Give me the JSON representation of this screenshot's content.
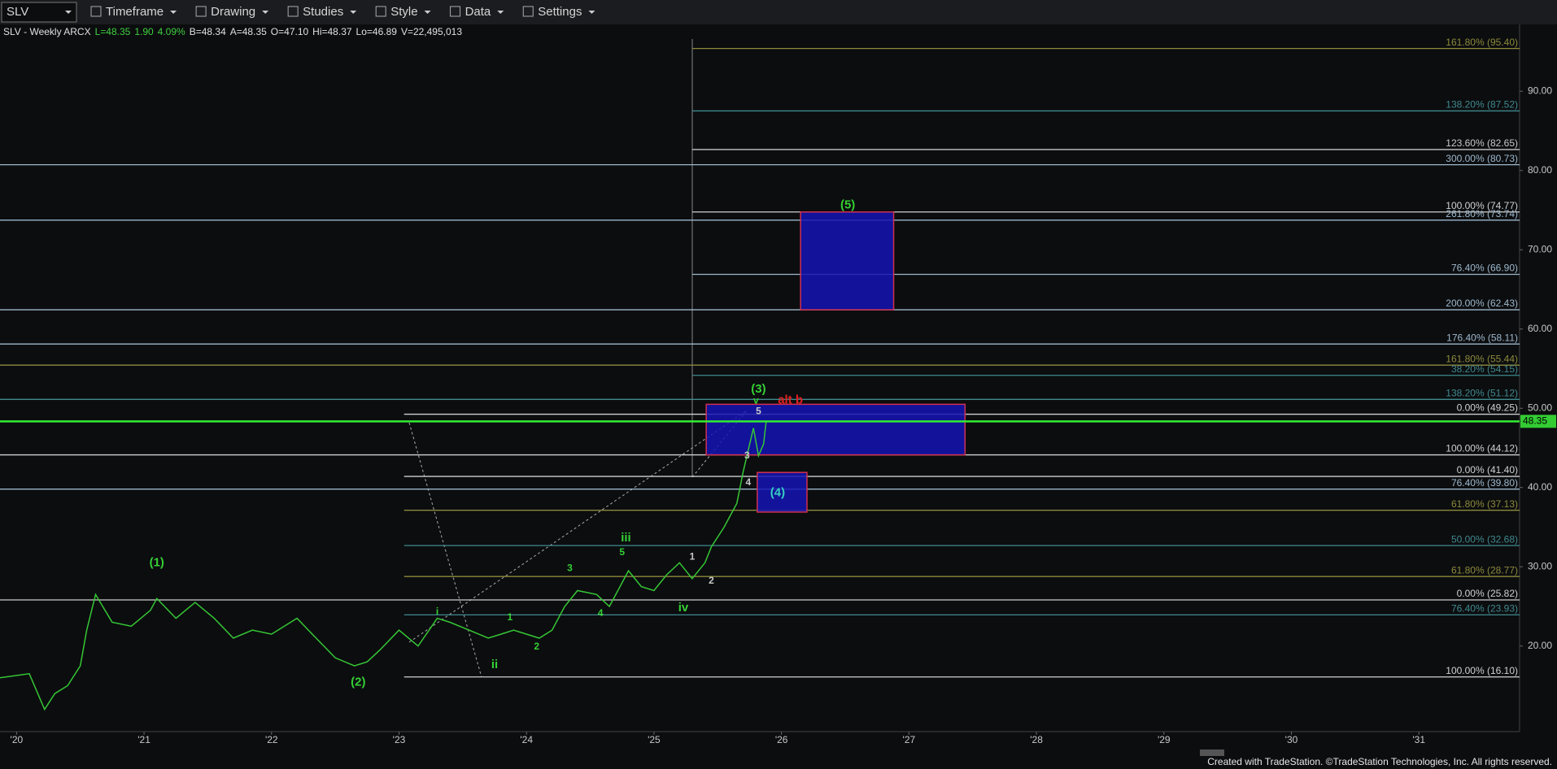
{
  "toolbar": {
    "symbol": "SLV",
    "items": [
      "Timeframe",
      "Drawing",
      "Studies",
      "Style",
      "Data",
      "Settings"
    ]
  },
  "info": [
    {
      "text": "SLV - Weekly ARCX",
      "color": "#e0e0e0"
    },
    {
      "text": "L=48.35",
      "color": "#3fd13f"
    },
    {
      "text": "1.90",
      "color": "#3fd13f"
    },
    {
      "text": "4.09%",
      "color": "#3fd13f"
    },
    {
      "text": "B=48.34",
      "color": "#e0e0e0"
    },
    {
      "text": "A=48.35",
      "color": "#e0e0e0"
    },
    {
      "text": "O=47.10",
      "color": "#e0e0e0"
    },
    {
      "text": "Hi=48.37",
      "color": "#e0e0e0"
    },
    {
      "text": "Lo=46.89",
      "color": "#e0e0e0"
    },
    {
      "text": "V=22,495,013",
      "color": "#e0e0e0"
    }
  ],
  "chart_data": {
    "type": "line",
    "color": "#35c735",
    "x": [
      2019.87,
      2020.1,
      2020.22,
      2020.3,
      2020.4,
      2020.5,
      2020.55,
      2020.62,
      2020.75,
      2020.9,
      2021.05,
      2021.1,
      2021.25,
      2021.4,
      2021.55,
      2021.7,
      2021.85,
      2022.0,
      2022.2,
      2022.35,
      2022.5,
      2022.65,
      2022.75,
      2022.85,
      2023.0,
      2023.15,
      2023.3,
      2023.4,
      2023.55,
      2023.7,
      2023.8,
      2023.9,
      2024.1,
      2024.2,
      2024.3,
      2024.4,
      2024.55,
      2024.65,
      2024.8,
      2024.9,
      2025.0,
      2025.1,
      2025.2,
      2025.3,
      2025.4,
      2025.45,
      2025.55,
      2025.65,
      2025.7,
      2025.78,
      2025.82,
      2025.86,
      2025.88
    ],
    "values": [
      16,
      16.5,
      12,
      14,
      15,
      17.5,
      22,
      26.5,
      23,
      22.5,
      24.5,
      26,
      23.5,
      25.5,
      23.5,
      21,
      22,
      21.5,
      23.5,
      21,
      18.5,
      17.5,
      18,
      19.5,
      22,
      20,
      23.5,
      23,
      22,
      21,
      21.5,
      22,
      21,
      22,
      25,
      27,
      26.5,
      25,
      29.5,
      27.5,
      27,
      29,
      30.5,
      28.5,
      30.5,
      32.5,
      35,
      38,
      42,
      47.5,
      44,
      45.5,
      48.35
    ],
    "last": 48.35,
    "xlim": [
      2019.87,
      2031.79
    ],
    "ylim": [
      9.2,
      96.9
    ],
    "xticks": [
      {
        "value": 2020,
        "label": "'20"
      },
      {
        "value": 2021,
        "label": "'21"
      },
      {
        "value": 2022,
        "label": "'22"
      },
      {
        "value": 2023,
        "label": "'23"
      },
      {
        "value": 2024,
        "label": "'24"
      },
      {
        "value": 2025,
        "label": "'25"
      },
      {
        "value": 2026,
        "label": "'26"
      },
      {
        "value": 2027,
        "label": "'27"
      },
      {
        "value": 2028,
        "label": "'28"
      },
      {
        "value": 2029,
        "label": "'29"
      },
      {
        "value": 2030,
        "label": "'30"
      },
      {
        "value": 2031,
        "label": "'31"
      }
    ],
    "yticks": [
      {
        "value": 20,
        "label": "20.00"
      },
      {
        "value": 30,
        "label": "30.00"
      },
      {
        "value": 40,
        "label": "40.00"
      },
      {
        "value": 50,
        "label": "50.00"
      },
      {
        "value": 60,
        "label": "60.00"
      },
      {
        "value": 70,
        "label": "70.00"
      },
      {
        "value": 80,
        "label": "80.00"
      },
      {
        "value": 90,
        "label": "90.00"
      }
    ],
    "levels": [
      {
        "label": "161.80% (95.40)",
        "value": 95.4,
        "from": 2025.3,
        "color": "#8c8a3c"
      },
      {
        "label": "138.20% (87.52)",
        "value": 87.52,
        "from": 2025.3,
        "color": "#3f8a8f"
      },
      {
        "label": "123.60% (82.65)",
        "value": 82.65,
        "from": 2025.3,
        "color": "#c8c8c8"
      },
      {
        "label": "300.00% (80.73)",
        "value": 80.73,
        "from": 2019.87,
        "color": "#9db8cc"
      },
      {
        "label": "100.00% (74.77)",
        "value": 74.77,
        "from": 2025.3,
        "color": "#d0d0d0"
      },
      {
        "label": "261.80% (73.74)",
        "value": 73.74,
        "from": 2019.87,
        "color": "#9db8cc"
      },
      {
        "label": "76.40% (66.90)",
        "value": 66.9,
        "from": 2025.3,
        "color": "#9db8cc"
      },
      {
        "label": "200.00% (62.43)",
        "value": 62.43,
        "from": 2019.87,
        "color": "#9db8cc"
      },
      {
        "label": "176.40% (58.11)",
        "value": 58.11,
        "from": 2019.87,
        "color": "#9db8cc"
      },
      {
        "label": "161.80% (55.44)",
        "value": 55.44,
        "from": 2019.87,
        "color": "#8c8a3c"
      },
      {
        "label": "38.20% (54.15)",
        "value": 54.15,
        "from": 2025.3,
        "color": "#3f8a8f"
      },
      {
        "label": "138.20% (51.12)",
        "value": 51.12,
        "from": 2019.87,
        "color": "#3f8a8f"
      },
      {
        "label": "0.00% (49.25)",
        "value": 49.25,
        "from": 2023.04,
        "color": "#d0d0d0"
      },
      {
        "label": "100.00% (44.12)",
        "value": 44.12,
        "from": 2019.87,
        "color": "#d0d0d0"
      },
      {
        "label": "0.00% (41.40)",
        "value": 41.4,
        "from": 2023.04,
        "color": "#d0d0d0"
      },
      {
        "label": "76.40% (39.80)",
        "value": 39.8,
        "from": 2019.87,
        "color": "#9db8cc"
      },
      {
        "label": "61.80% (37.13)",
        "value": 37.13,
        "from": 2023.04,
        "color": "#8c8a3c"
      },
      {
        "label": "50.00% (32.68)",
        "value": 32.68,
        "from": 2023.04,
        "color": "#3f8a8f"
      },
      {
        "label": "61.80% (28.77)",
        "value": 28.77,
        "from": 2023.04,
        "color": "#8c8a3c"
      },
      {
        "label": "0.00% (25.82)",
        "value": 25.82,
        "from": 2019.87,
        "color": "#d0d0d0"
      },
      {
        "label": "76.40% (23.93)",
        "value": 23.93,
        "from": 2023.04,
        "color": "#3f8a8f"
      },
      {
        "label": "100.00% (16.10)",
        "value": 16.1,
        "from": 2023.04,
        "color": "#d0d0d0"
      }
    ],
    "zones": [
      {
        "x0": 2026.15,
        "x1": 2026.88,
        "y0": 62.43,
        "y1": 74.77
      },
      {
        "x0": 2025.41,
        "x1": 2027.44,
        "y0": 44.12,
        "y1": 50.5
      },
      {
        "x0": 2025.81,
        "x1": 2026.2,
        "y0": 36.9,
        "y1": 41.9
      }
    ],
    "annotations": [
      {
        "text": "(1)",
        "x": 2021.1,
        "y": 30.5,
        "color": "#35d035"
      },
      {
        "text": "(2)",
        "x": 2022.68,
        "y": 15.4,
        "color": "#35d035"
      },
      {
        "text": "(3)",
        "x": 2025.82,
        "y": 52.4,
        "color": "#35d035"
      },
      {
        "text": "(4)",
        "x": 2025.97,
        "y": 39.3,
        "color": "#35d0c0"
      },
      {
        "text": "(5)",
        "x": 2026.52,
        "y": 75.6,
        "color": "#35d035"
      },
      {
        "text": "alt b",
        "x": 2026.07,
        "y": 51.0,
        "color": "#e02020"
      },
      {
        "text": "i",
        "x": 2023.3,
        "y": 24.3,
        "color": "#35d035"
      },
      {
        "text": "ii",
        "x": 2023.75,
        "y": 17.6,
        "color": "#35d035"
      },
      {
        "text": "iii",
        "x": 2024.78,
        "y": 33.6,
        "color": "#35d035"
      },
      {
        "text": "iv",
        "x": 2025.23,
        "y": 24.8,
        "color": "#35d035"
      },
      {
        "text": "v",
        "x": 2025.8,
        "y": 50.9,
        "color": "#35d035"
      },
      {
        "text": "1",
        "x": 2023.87,
        "y": 23.6,
        "color": "#35d035"
      },
      {
        "text": "2",
        "x": 2024.08,
        "y": 19.9,
        "color": "#35d035"
      },
      {
        "text": "3",
        "x": 2024.34,
        "y": 29.8,
        "color": "#35d035"
      },
      {
        "text": "4",
        "x": 2024.58,
        "y": 24.1,
        "color": "#35d035"
      },
      {
        "text": "5",
        "x": 2024.75,
        "y": 31.8,
        "color": "#35d035"
      },
      {
        "text": "1",
        "x": 2025.3,
        "y": 31.2,
        "color": "#c8c8c8"
      },
      {
        "text": "2",
        "x": 2025.45,
        "y": 28.2,
        "color": "#c8c8c8"
      },
      {
        "text": "3",
        "x": 2025.73,
        "y": 44.0,
        "color": "#c8c8c8"
      },
      {
        "text": "4",
        "x": 2025.74,
        "y": 40.6,
        "color": "#c8c8c8"
      },
      {
        "text": "5",
        "x": 2025.82,
        "y": 49.6,
        "color": "#c8c8c8"
      }
    ]
  },
  "footer": "Created with TradeStation. ©TradeStation Technologies, Inc. All rights reserved."
}
